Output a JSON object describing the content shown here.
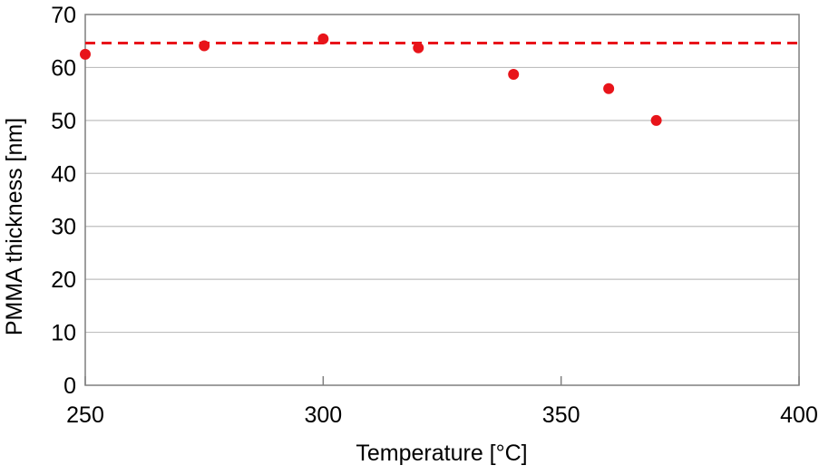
{
  "chart_data": {
    "type": "scatter",
    "xlabel": "Temperature [°C]",
    "ylabel": "PMMA thickness [nm]",
    "xlim": [
      250,
      400
    ],
    "ylim": [
      0,
      70
    ],
    "x_ticks": [
      250,
      300,
      350,
      400
    ],
    "y_ticks": [
      0,
      10,
      20,
      30,
      40,
      50,
      60,
      70
    ],
    "grid": "horizontal",
    "legend": "none",
    "series": [
      {
        "x": [
          250,
          275,
          300,
          320,
          340,
          360,
          370
        ],
        "y": [
          62.5,
          64.1,
          65.4,
          63.7,
          58.7,
          56.0,
          50.0
        ],
        "color": "#e8141a",
        "marker": "circle"
      }
    ],
    "reference_line": {
      "y": 64.6,
      "style": "dashed",
      "color": "#e8141a"
    }
  }
}
